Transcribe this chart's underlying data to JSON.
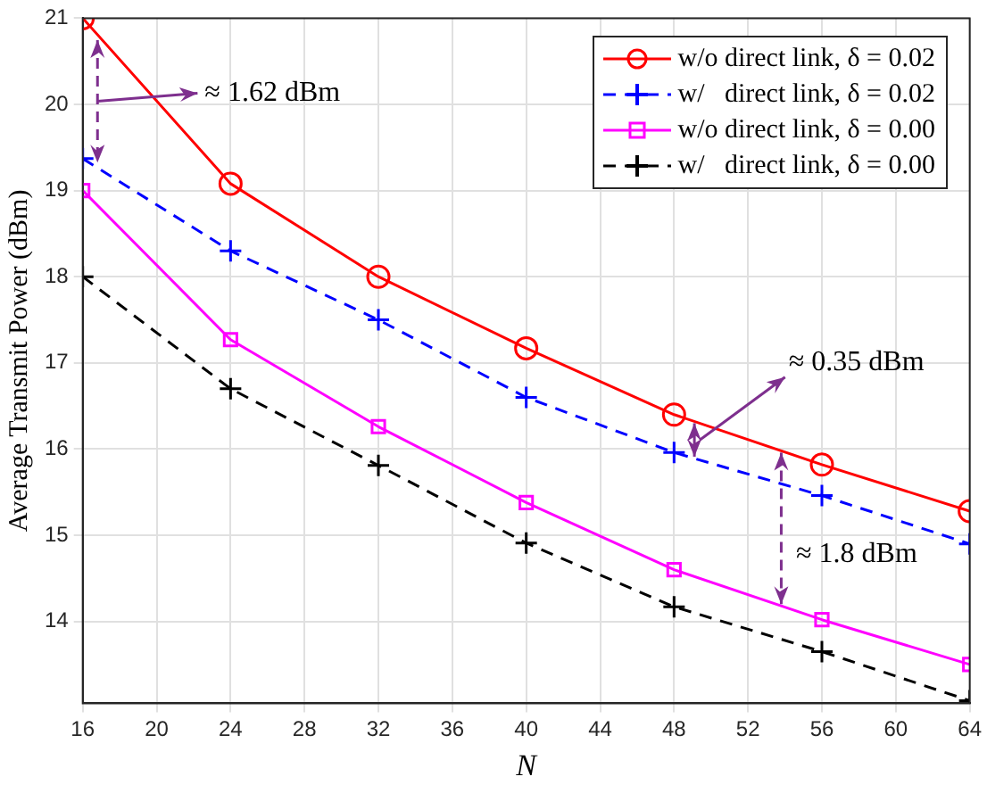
{
  "chart_data": {
    "type": "line",
    "xlabel": "N",
    "ylabel": "Average Transmit Power (dBm)",
    "x": [
      16,
      24,
      32,
      40,
      48,
      56,
      64
    ],
    "series": [
      {
        "name": "w/o direct link, δ = 0.02",
        "color": "#ff0000",
        "marker": "circle",
        "line_style": "solid",
        "values": [
          21.0,
          19.08,
          18.0,
          17.17,
          16.4,
          15.82,
          15.28
        ]
      },
      {
        "name": "w/   direct link, δ = 0.02",
        "color": "#0000ff",
        "marker": "cross",
        "line_style": "dashed",
        "values": [
          19.37,
          18.3,
          17.5,
          16.6,
          15.96,
          15.46,
          14.9
        ]
      },
      {
        "name": "w/o direct link, δ = 0.00",
        "color": "#ff00ff",
        "marker": "square",
        "line_style": "solid",
        "values": [
          19.0,
          17.27,
          16.26,
          15.38,
          14.6,
          14.02,
          13.5
        ]
      },
      {
        "name": "w/   direct link, δ = 0.00",
        "color": "#000000",
        "marker": "cross",
        "line_style": "dashed",
        "values": [
          18.0,
          16.7,
          15.81,
          14.91,
          14.17,
          13.65,
          13.08
        ]
      }
    ],
    "xlim": [
      16,
      64
    ],
    "xticks": [
      16,
      20,
      24,
      28,
      32,
      36,
      40,
      44,
      48,
      52,
      56,
      60,
      64
    ],
    "ylim": [
      13.05,
      21
    ],
    "yticks": [
      14,
      15,
      16,
      17,
      18,
      19,
      20,
      21
    ],
    "grid": true,
    "legend": "top right",
    "annotations": [
      "≈ 1.62 dBm",
      "≈ 0.35 dBm",
      "≈ 1.8 dBm"
    ]
  }
}
